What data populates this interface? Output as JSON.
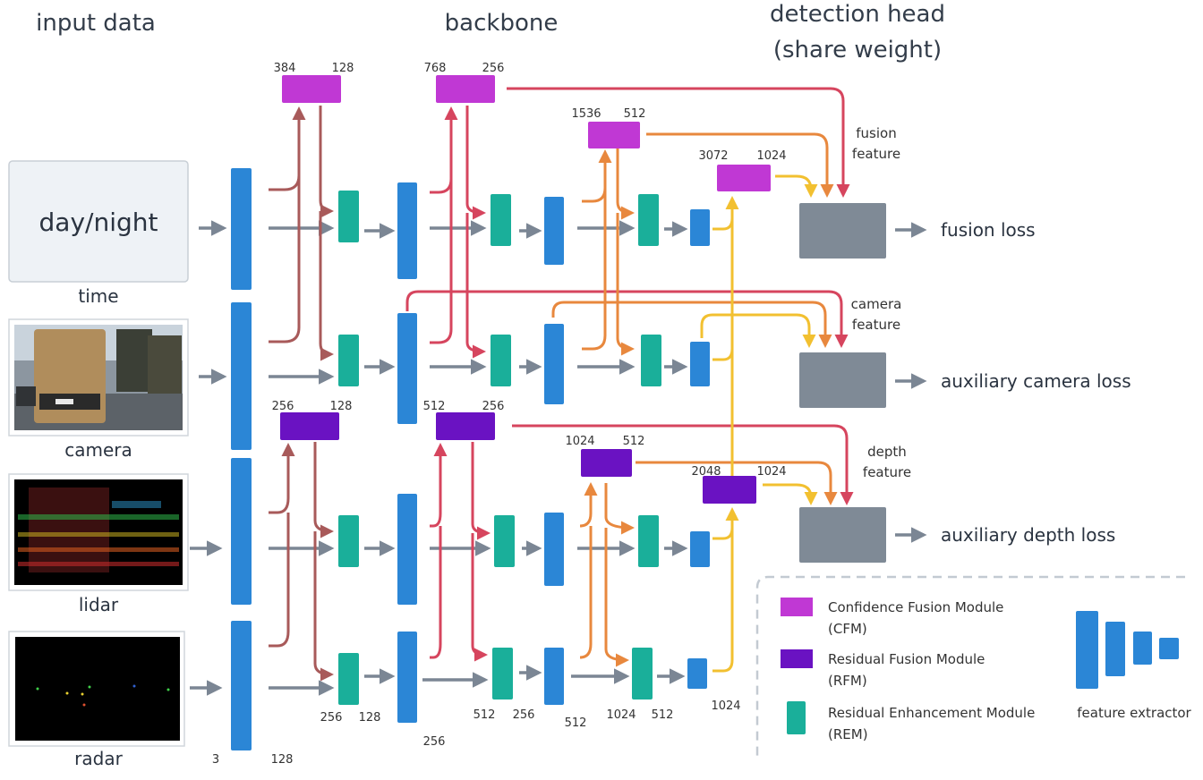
{
  "headers": {
    "input_data": "input data",
    "backbone": "backbone",
    "detection_head_line1": "detection head",
    "detection_head_line2": "(share weight)"
  },
  "inputs": {
    "time_box": "day/night",
    "time": "time",
    "camera": "camera",
    "lidar": "lidar",
    "radar": "radar"
  },
  "losses": {
    "fusion": "fusion loss",
    "camera": "auxiliary camera loss",
    "depth": "auxiliary depth loss"
  },
  "features": {
    "fusion_1": "fusion",
    "fusion_2": "feature",
    "camera_1": "camera",
    "camera_2": "feature",
    "depth_1": "depth",
    "depth_2": "feature"
  },
  "numbers": {
    "cfm1_in": "384",
    "cfm1_out": "128",
    "cfm2_in": "768",
    "cfm2_out": "256",
    "cfm3_in": "1536",
    "cfm3_out": "512",
    "cfm4_in": "3072",
    "cfm4_out": "1024",
    "rfm1_in": "256",
    "rfm1_out": "128",
    "rfm2_in": "512",
    "rfm2_out": "256",
    "rfm3_in": "1024",
    "rfm3_out": "512",
    "rfm4_in": "2048",
    "rfm4_out": "1024",
    "b_3": "3",
    "b_128": "128",
    "b_256a": "256",
    "b_128b": "128",
    "b_256b": "256",
    "b_512a": "512",
    "b_256c": "256",
    "b_512b": "512",
    "b_1024a": "1024",
    "b_512c": "512",
    "b_1024b": "1024"
  },
  "legend": {
    "cfm_1": "Confidence Fusion Module",
    "cfm_2": "(CFM)",
    "rfm_1": "Residual Fusion Module",
    "rfm_2": "(RFM)",
    "rem_1": "Residual Enhancement Module",
    "rem_2": "(REM)",
    "feature_extractor": "feature extractor"
  },
  "colors": {
    "blue": "#2b86d6",
    "teal": "#1aaf9a",
    "cfm": "#c038d4",
    "rfm": "#6a12c2",
    "head": "#7f8a96",
    "gray_arrow": "#7b8694",
    "red_arrow": "#d6455e",
    "brown_arrow": "#a85a5a",
    "orange_arrow": "#e8883e",
    "yellow_arrow": "#f2c030"
  }
}
